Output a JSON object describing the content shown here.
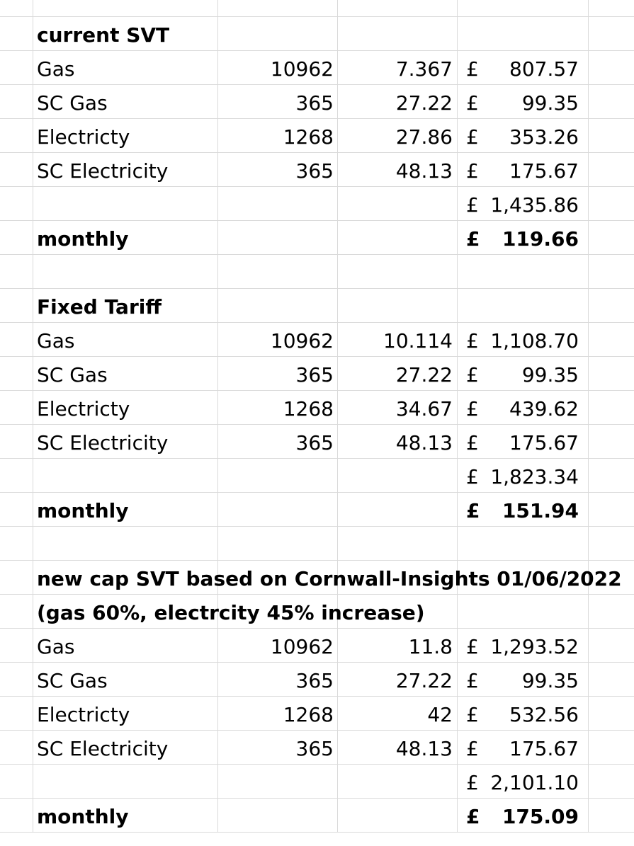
{
  "sections": [
    {
      "title_lines": [
        "current SVT"
      ],
      "rows": [
        {
          "label": "Gas",
          "qty": "10962",
          "rate": "7.367",
          "currency": "£",
          "amount": "807.57"
        },
        {
          "label": "SC Gas",
          "qty": "365",
          "rate": "27.22",
          "currency": "£",
          "amount": "99.35"
        },
        {
          "label": "Electricty",
          "qty": "1268",
          "rate": "27.86",
          "currency": "£",
          "amount": "353.26"
        },
        {
          "label": "SC Electricity",
          "qty": "365",
          "rate": "48.13",
          "currency": "£",
          "amount": "175.67"
        }
      ],
      "total": {
        "currency": "£",
        "amount": "1,435.86"
      },
      "monthly": {
        "label": "monthly",
        "currency": "£",
        "amount": "119.66"
      }
    },
    {
      "title_lines": [
        "Fixed Tariff"
      ],
      "rows": [
        {
          "label": "Gas",
          "qty": "10962",
          "rate": "10.114",
          "currency": "£",
          "amount": "1,108.70"
        },
        {
          "label": "SC Gas",
          "qty": "365",
          "rate": "27.22",
          "currency": "£",
          "amount": "99.35"
        },
        {
          "label": "Electricty",
          "qty": "1268",
          "rate": "34.67",
          "currency": "£",
          "amount": "439.62"
        },
        {
          "label": "SC Electricity",
          "qty": "365",
          "rate": "48.13",
          "currency": "£",
          "amount": "175.67"
        }
      ],
      "total": {
        "currency": "£",
        "amount": "1,823.34"
      },
      "monthly": {
        "label": "monthly",
        "currency": "£",
        "amount": "151.94"
      }
    },
    {
      "title_lines": [
        "new cap SVT based on Cornwall-Insights 01/06/2022",
        "(gas 60%, electrcity 45% increase)"
      ],
      "rows": [
        {
          "label": "Gas",
          "qty": "10962",
          "rate": "11.8",
          "currency": "£",
          "amount": "1,293.52"
        },
        {
          "label": "SC Gas",
          "qty": "365",
          "rate": "27.22",
          "currency": "£",
          "amount": "99.35"
        },
        {
          "label": "Electricty",
          "qty": "1268",
          "rate": "42",
          "currency": "£",
          "amount": "532.56"
        },
        {
          "label": "SC Electricity",
          "qty": "365",
          "rate": "48.13",
          "currency": "£",
          "amount": "175.67"
        }
      ],
      "total": {
        "currency": "£",
        "amount": "2,101.10"
      },
      "monthly": {
        "label": "monthly",
        "currency": "£",
        "amount": "175.09"
      }
    }
  ]
}
